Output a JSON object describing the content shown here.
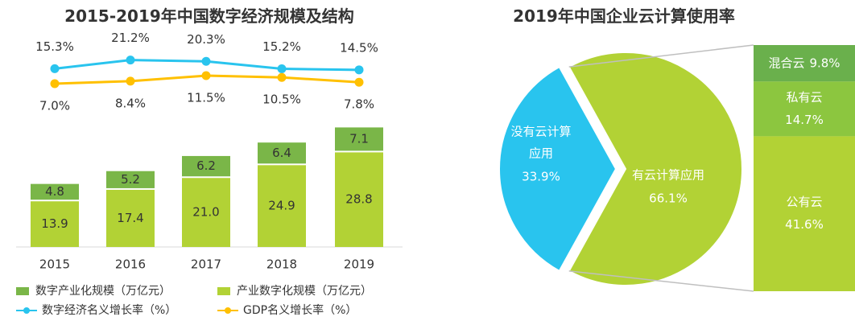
{
  "colors": {
    "digital_industry": "#7ab648",
    "industry_digital": "#b2d235",
    "digital_growth": "#29c4ee",
    "gdp_growth": "#ffc000",
    "cloud_none": "#29c4ee",
    "cloud_has": "#b2d235",
    "bar_hybrid": "#6ab04c",
    "bar_private": "#8cc63f",
    "bar_public": "#b2d235",
    "text": "#333333",
    "connector": "#bfbfbf"
  },
  "chart_data": [
    {
      "type": "bar",
      "title": "2015-2019年中国数字经济规模及结构",
      "categories": [
        "2015",
        "2016",
        "2017",
        "2018",
        "2019"
      ],
      "series": [
        {
          "name": "产业数字化规模（万亿元）",
          "values": [
            13.9,
            17.4,
            21.0,
            24.9,
            28.8
          ],
          "labels": [
            "13.9",
            "17.4",
            "21.0",
            "24.9",
            "28.8"
          ],
          "stack": "bottom"
        },
        {
          "name": "数字产业化规模（万亿元）",
          "values": [
            4.8,
            5.2,
            6.2,
            6.4,
            7.1
          ],
          "labels": [
            "4.8",
            "5.2",
            "6.2",
            "6.4",
            "7.1"
          ],
          "stack": "top"
        },
        {
          "name": "数字经济名义增长率（%）",
          "type": "line",
          "values": [
            15.3,
            21.2,
            20.3,
            15.2,
            14.5
          ],
          "labels": [
            "15.3%",
            "21.2%",
            "20.3%",
            "15.2%",
            "14.5%"
          ]
        },
        {
          "name": "GDP名义增长率（%）",
          "type": "line",
          "values": [
            7.0,
            8.4,
            11.5,
            10.5,
            7.8
          ],
          "labels": [
            "7.0%",
            "8.4%",
            "11.5%",
            "10.5%",
            "7.8%"
          ]
        }
      ],
      "bar_ylim": [
        0,
        36
      ],
      "line_ylim": [
        0,
        25
      ],
      "legend": [
        {
          "label": "数字产业化规模（万亿元）",
          "kind": "box",
          "color_key": "digital_industry"
        },
        {
          "label": "产业数字化规模（万亿元）",
          "kind": "box",
          "color_key": "industry_digital"
        },
        {
          "label": "数字经济名义增长率（%）",
          "kind": "line",
          "color_key": "digital_growth"
        },
        {
          "label": "GDP名义增长率（%）",
          "kind": "line",
          "color_key": "gdp_growth"
        }
      ],
      "legend_position": "bottom"
    },
    {
      "type": "pie",
      "title": "2019年中国企业云计算使用率",
      "slices": [
        {
          "name": "没有云计算应用",
          "label_lines": [
            "没有云计算",
            "应用"
          ],
          "value": 33.9,
          "value_label": "33.9%"
        },
        {
          "name": "有云计算应用",
          "label_lines": [
            "有云计算应用"
          ],
          "value": 66.1,
          "value_label": "66.1%"
        }
      ],
      "breakdown": {
        "of": "有云计算应用",
        "type": "stacked_bar",
        "segments": [
          {
            "name": "混合云",
            "value": 9.8,
            "value_label": "9.8%"
          },
          {
            "name": "私有云",
            "value": 14.7,
            "value_label": "14.7%"
          },
          {
            "name": "公有云",
            "value": 41.6,
            "value_label": "41.6%"
          }
        ]
      }
    }
  ]
}
